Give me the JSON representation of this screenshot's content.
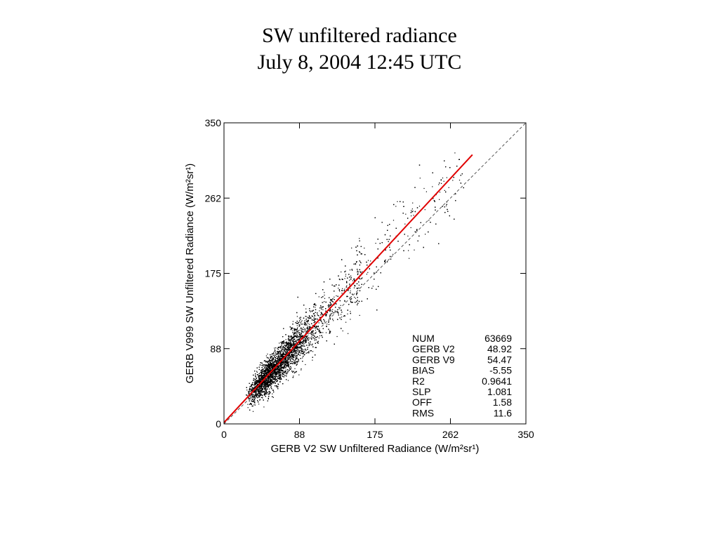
{
  "slide": {
    "title_line1": "SW unfiltered radiance",
    "title_line2": "July 8, 2004 12:45 UTC"
  },
  "chart_data": {
    "type": "scatter",
    "title": "",
    "xlabel": "GERB V2 SW Unfiltered Radiance (W/m²sr¹)",
    "ylabel": "GERB V999 SW Unfiltered Radiance (W/m²sr¹)",
    "xlim": [
      0,
      350
    ],
    "ylim": [
      0,
      350
    ],
    "xticks": [
      "0",
      "88",
      "175",
      "262",
      "350"
    ],
    "yticks": [
      "0",
      "88",
      "175",
      "262",
      "350"
    ],
    "n_points": 63669,
    "fit_line": {
      "color": "#e00000",
      "slope": 1.081,
      "offset": 1.58,
      "x_range": [
        0,
        288
      ]
    },
    "one_to_one_line": {
      "style": "dashed",
      "color": "#555555",
      "x_range": [
        0,
        350
      ]
    },
    "stats": [
      {
        "label": "NUM",
        "value": "63669"
      },
      {
        "label": "GERB V2",
        "value": "48.92"
      },
      {
        "label": "GERB V9",
        "value": "54.47"
      },
      {
        "label": "BIAS",
        "value": "-5.55"
      },
      {
        "label": "R2",
        "value": "0.9641"
      },
      {
        "label": "SLP",
        "value": "1.081"
      },
      {
        "label": "OFF",
        "value": "1.58"
      },
      {
        "label": "RMS",
        "value": "11.6"
      }
    ],
    "colors": {
      "points": "#000000",
      "fit": "#e00000",
      "axes": "#000000"
    }
  }
}
